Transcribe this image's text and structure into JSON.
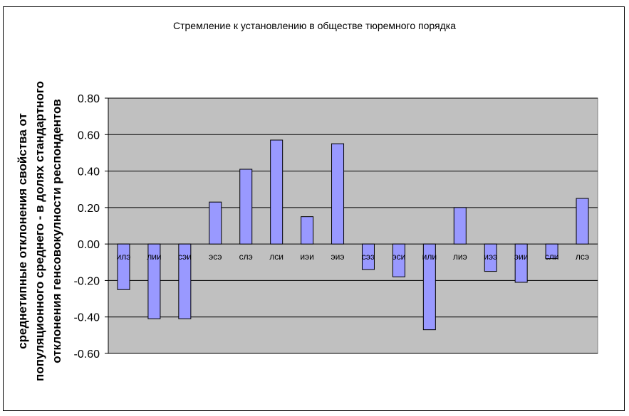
{
  "chart_data": {
    "type": "bar",
    "title": "Стремление к установлению в обществе тюремного порядка",
    "ylabel_lines": [
      "среднетипные отклонения свойства от",
      "популяционного среднего - в долях стандартного",
      "отклонения генсовокулности респондентов"
    ],
    "categories": [
      "илэ",
      "лии",
      "сэи",
      "эсэ",
      "слэ",
      "лси",
      "иэи",
      "эиэ",
      "сээ",
      "эси",
      "или",
      "лиэ",
      "иээ",
      "эии",
      "сли",
      "лсэ"
    ],
    "values": [
      -0.25,
      -0.41,
      -0.41,
      0.23,
      0.41,
      0.57,
      0.15,
      0.55,
      -0.14,
      -0.18,
      -0.47,
      0.2,
      -0.15,
      -0.21,
      -0.08,
      0.25
    ],
    "yticks": [
      "0.80",
      "0.60",
      "0.40",
      "0.20",
      "0.00",
      "-0.20",
      "-0.40",
      "-0.60"
    ],
    "ylim": [
      -0.6,
      0.8
    ],
    "grid": true,
    "colors": {
      "bar_fill": "#9999ff",
      "bar_stroke": "#000000",
      "plot_bg": "#c0c0c0",
      "grid": "#000000"
    }
  }
}
